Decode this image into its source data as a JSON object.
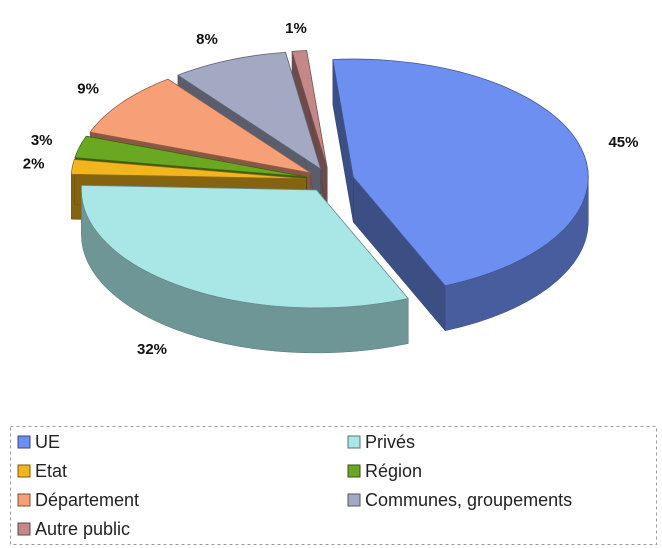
{
  "chart_data": {
    "type": "pie",
    "categories": [
      "UE",
      "Privés",
      "Etat",
      "Région",
      "Département",
      "Communes, groupements",
      "Autre public"
    ],
    "values": [
      45,
      32,
      2,
      3,
      9,
      8,
      1
    ],
    "value_labels": [
      "45%",
      "32%",
      "2%",
      "3%",
      "9%",
      "8%",
      "1%"
    ],
    "colors": [
      "#6d8ff2",
      "#a9e6e6",
      "#f2b51e",
      "#6aa821",
      "#f7a078",
      "#a3a9c2",
      "#c48888"
    ]
  }
}
